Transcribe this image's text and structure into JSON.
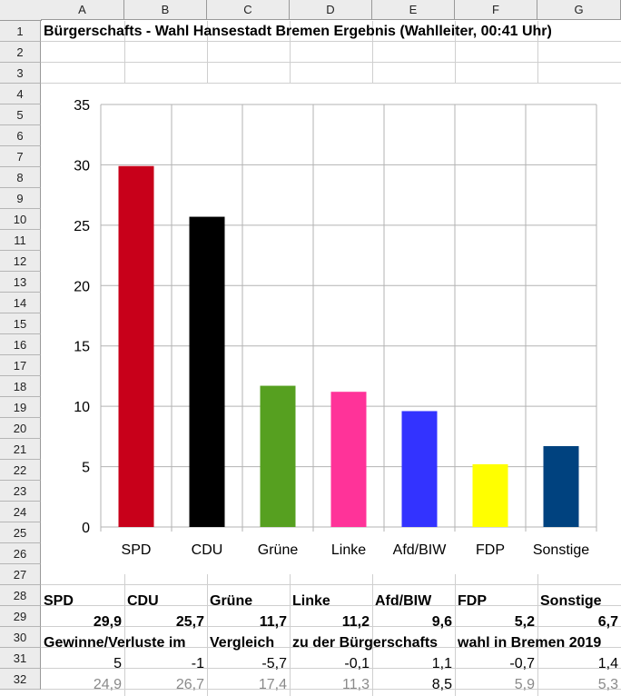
{
  "columns": [
    "A",
    "B",
    "C",
    "D",
    "E",
    "F",
    "G"
  ],
  "rows": [
    "1",
    "2",
    "3",
    "4",
    "5",
    "6",
    "7",
    "8",
    "9",
    "10",
    "11",
    "12",
    "13",
    "14",
    "15",
    "16",
    "17",
    "18",
    "19",
    "20",
    "21",
    "22",
    "23",
    "24",
    "25",
    "26",
    "27",
    "28",
    "29",
    "30",
    "31",
    "32"
  ],
  "title": "Bürgerschafts - Wahl Hansestadt Bremen Ergebnis (Wahlleiter, 00:41 Uhr)",
  "parties": [
    "SPD",
    "CDU",
    "Grüne",
    "Linke",
    "Afd/BIW",
    "FDP",
    "Sonstige"
  ],
  "results": [
    "29,9",
    "25,7",
    "11,7",
    "11,2",
    "9,6",
    "5,2",
    "6,7"
  ],
  "row30": [
    "Gewinne/Verluste im",
    "Vergleich",
    "zu der Bürgerschafts",
    "wahl in Bremen 2019"
  ],
  "changes": [
    "5",
    "-1",
    "-5,7",
    "-0,1",
    "1,1",
    "-0,7",
    "1,4"
  ],
  "previous": [
    "24,9",
    "26,7",
    "17,4",
    "11,3",
    "8,5",
    "5,9",
    "5,3"
  ],
  "chart_data": {
    "type": "bar",
    "categories": [
      "SPD",
      "CDU",
      "Grüne",
      "Linke",
      "Afd/BIW",
      "FDP",
      "Sonstige"
    ],
    "values": [
      29.9,
      25.7,
      11.7,
      11.2,
      9.6,
      5.2,
      6.7
    ],
    "colors": [
      "#c8001a",
      "#000000",
      "#56a020",
      "#ff3399",
      "#3333ff",
      "#ffff00",
      "#00427f"
    ],
    "yticks": [
      "0",
      "5",
      "10",
      "15",
      "20",
      "25",
      "30",
      "35"
    ],
    "ylim": [
      0,
      35
    ],
    "grid": true,
    "legend": "none"
  }
}
